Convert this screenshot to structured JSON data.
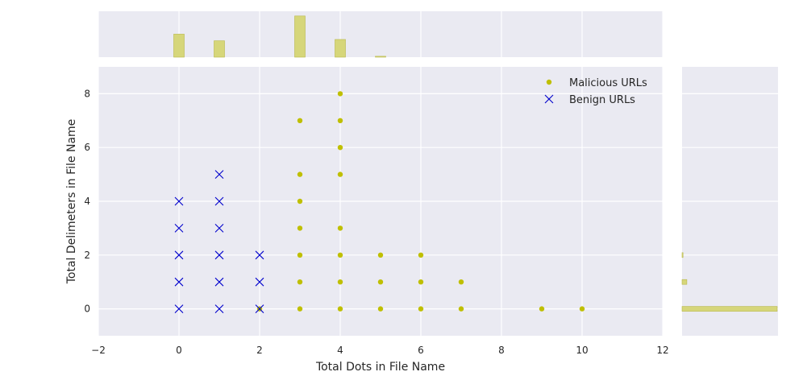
{
  "chart_data": {
    "type": "scatter",
    "xlabel": "Total Dots in File Name",
    "ylabel": "Total Delimeters in File Name",
    "xlim": [
      -2,
      12
    ],
    "ylim": [
      -1,
      9
    ],
    "x_ticks": [
      "−2",
      "0",
      "2",
      "4",
      "6",
      "8",
      "10",
      "12"
    ],
    "y_ticks": [
      "0",
      "2",
      "4",
      "6",
      "8"
    ],
    "grid": true,
    "legend_position": "top-right",
    "series": [
      {
        "name": "Malicious URLs",
        "marker": "circle",
        "color": "#bfbf00",
        "points": [
          [
            2,
            0
          ],
          [
            3,
            0
          ],
          [
            3,
            1
          ],
          [
            3,
            2
          ],
          [
            3,
            3
          ],
          [
            3,
            4
          ],
          [
            3,
            5
          ],
          [
            3,
            7
          ],
          [
            4,
            0
          ],
          [
            4,
            1
          ],
          [
            4,
            2
          ],
          [
            4,
            3
          ],
          [
            4,
            5
          ],
          [
            4,
            6
          ],
          [
            4,
            7
          ],
          [
            4,
            8
          ],
          [
            5,
            0
          ],
          [
            5,
            1
          ],
          [
            5,
            2
          ],
          [
            6,
            0
          ],
          [
            6,
            1
          ],
          [
            6,
            2
          ],
          [
            7,
            0
          ],
          [
            7,
            1
          ],
          [
            9,
            0
          ],
          [
            10,
            0
          ]
        ]
      },
      {
        "name": "Benign URLs",
        "marker": "x",
        "color": "#0000cc",
        "points": [
          [
            0,
            0
          ],
          [
            0,
            1
          ],
          [
            0,
            2
          ],
          [
            0,
            3
          ],
          [
            0,
            4
          ],
          [
            1,
            0
          ],
          [
            1,
            1
          ],
          [
            1,
            2
          ],
          [
            1,
            3
          ],
          [
            1,
            4
          ],
          [
            1,
            5
          ],
          [
            2,
            0
          ],
          [
            2,
            1
          ],
          [
            2,
            2
          ]
        ]
      }
    ],
    "marginal_x_histogram": {
      "color": "#d6d67a",
      "bins": [
        {
          "x": 0,
          "count": 0.52
        },
        {
          "x": 1,
          "count": 0.37
        },
        {
          "x": 3,
          "count": 0.93
        },
        {
          "x": 4,
          "count": 0.4
        },
        {
          "x": 5,
          "count": 0.02
        }
      ]
    },
    "marginal_y_histogram": {
      "color": "#d6d67a",
      "bins": [
        {
          "y": 0,
          "count": 1.0
        },
        {
          "y": 1,
          "count": 0.05
        },
        {
          "y": 2,
          "count": 0.01
        }
      ]
    }
  }
}
